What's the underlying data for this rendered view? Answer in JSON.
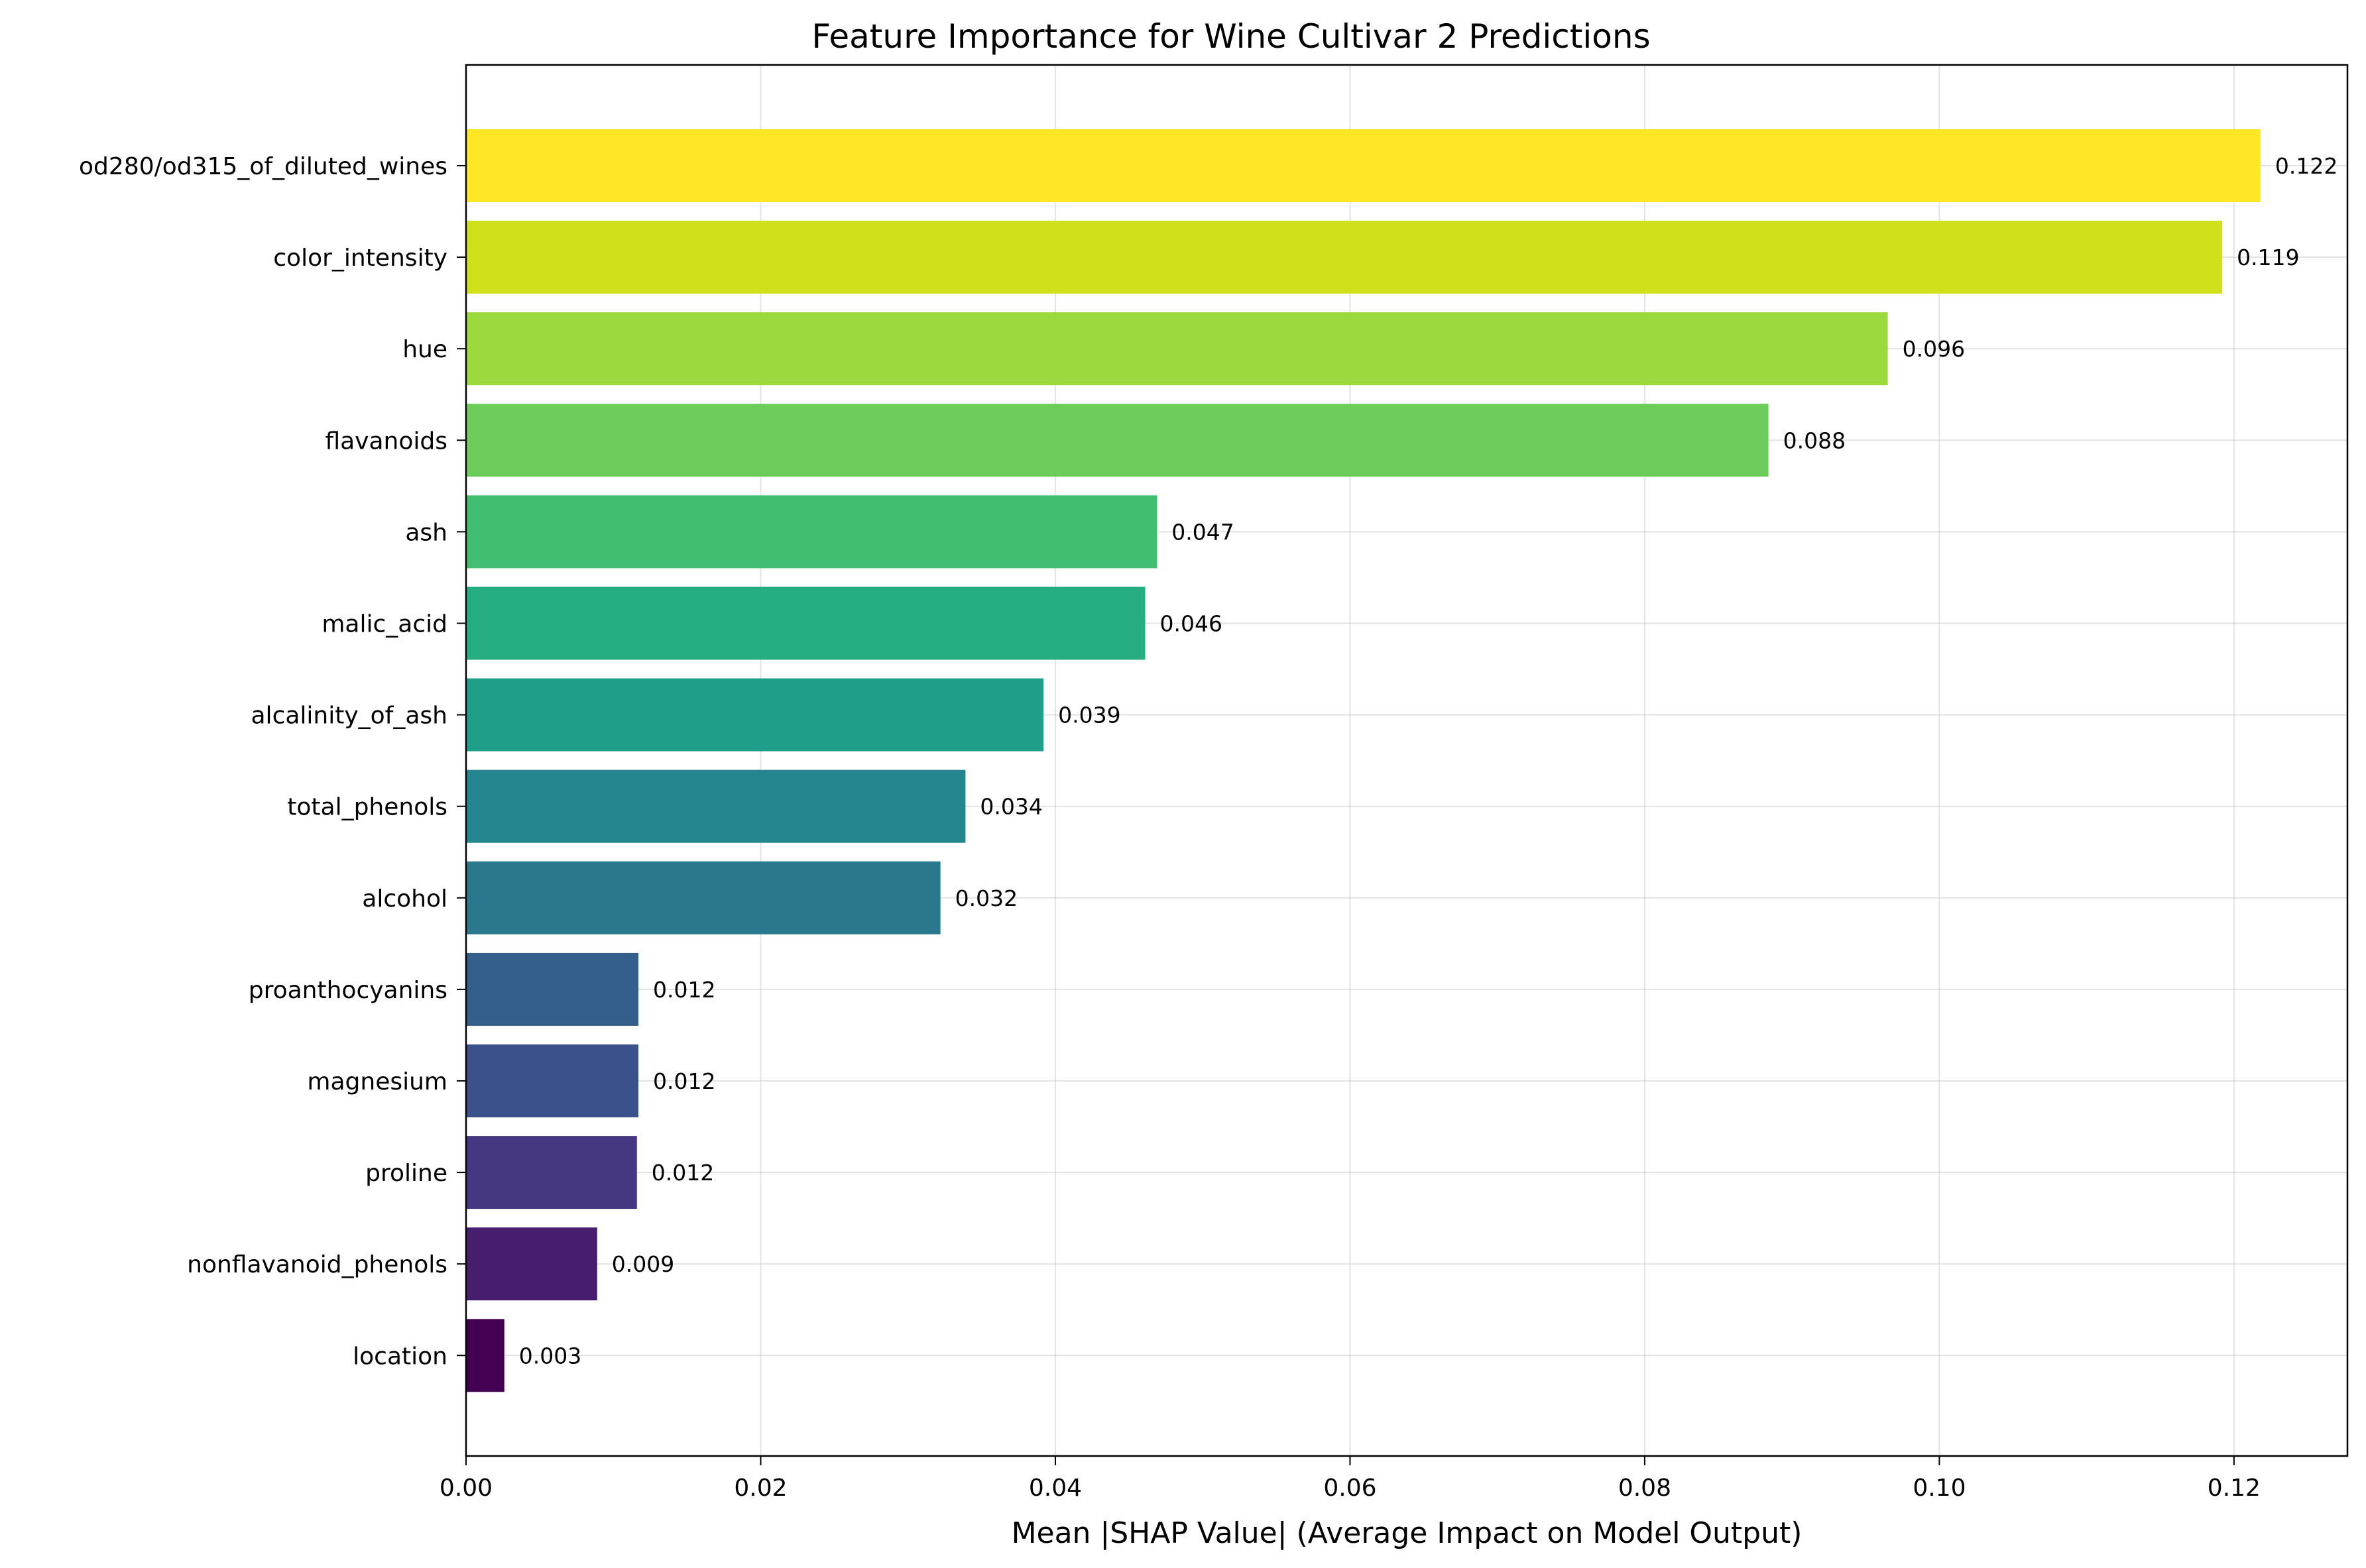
{
  "chart_data": {
    "type": "bar",
    "orientation": "horizontal",
    "title": "Feature Importance for Wine Cultivar 2 Predictions",
    "xlabel": "Mean |SHAP Value| (Average Impact on Model Output)",
    "ylabel": "",
    "xlim": [
      0,
      0.1277
    ],
    "xticks": [
      0.0,
      0.02,
      0.04,
      0.06,
      0.08,
      0.1,
      0.12
    ],
    "xtick_labels": [
      "0.00",
      "0.02",
      "0.04",
      "0.06",
      "0.08",
      "0.10",
      "0.12"
    ],
    "grid": true,
    "colormap": "viridis",
    "categories": [
      "od280/od315_of_diluted_wines",
      "color_intensity",
      "hue",
      "flavanoids",
      "ash",
      "malic_acid",
      "alcalinity_of_ash",
      "total_phenols",
      "alcohol",
      "proanthocyanins",
      "magnesium",
      "proline",
      "nonflavanoid_phenols",
      "location"
    ],
    "values": [
      0.1218,
      0.1192,
      0.0965,
      0.0884,
      0.0469,
      0.0461,
      0.0392,
      0.0339,
      0.0322,
      0.0117,
      0.0117,
      0.0116,
      0.0089,
      0.0026
    ],
    "value_labels": [
      "0.122",
      "0.119",
      "0.096",
      "0.088",
      "0.047",
      "0.046",
      "0.039",
      "0.034",
      "0.032",
      "0.012",
      "0.012",
      "0.012",
      "0.009",
      "0.003"
    ],
    "colors": [
      "#fde725",
      "#d0e11c",
      "#9bd93c",
      "#6ccd5a",
      "#42be71",
      "#26ad81",
      "#1f9e89",
      "#25858e",
      "#2a788e",
      "#345f8d",
      "#3b518b",
      "#453781",
      "#471d6f",
      "#440154"
    ]
  }
}
